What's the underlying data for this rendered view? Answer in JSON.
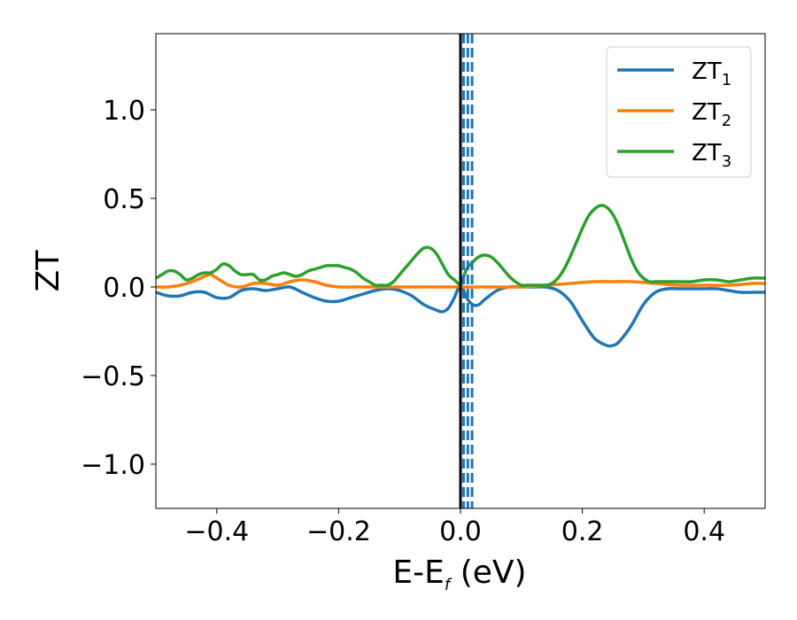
{
  "chart_data": {
    "type": "line",
    "xlabel": "E-E",
    "xlabel_sub": "f",
    "xlabel_unit": " (eV)",
    "ylabel": "ZT",
    "xlim": [
      -0.5,
      0.5
    ],
    "ylim": [
      -1.25,
      1.43
    ],
    "xticks": [
      -0.4,
      -0.2,
      0.0,
      0.2,
      0.4
    ],
    "xtick_labels": [
      "−0.4",
      "−0.2",
      "0.0",
      "0.2",
      "0.4"
    ],
    "yticks": [
      -1.0,
      -0.5,
      0.0,
      0.5,
      1.0
    ],
    "ytick_labels": [
      "−1.0",
      "−0.5",
      "0.0",
      "0.5",
      "1.0"
    ],
    "grid": false,
    "legend_position": "top-right",
    "vlines": [
      {
        "x": 0.0,
        "color": "#000000",
        "style": "solid"
      },
      {
        "x": 0.005,
        "color": "#1f77b4",
        "style": "dashed"
      },
      {
        "x": 0.012,
        "color": "#1f77b4",
        "style": "dashed"
      },
      {
        "x": 0.019,
        "color": "#1f77b4",
        "style": "dashed"
      }
    ],
    "series": [
      {
        "name": "ZT",
        "name_sub": "1",
        "color": "#1f77b4",
        "x": [
          -0.5,
          -0.48,
          -0.46,
          -0.44,
          -0.42,
          -0.4,
          -0.38,
          -0.36,
          -0.34,
          -0.32,
          -0.3,
          -0.28,
          -0.26,
          -0.24,
          -0.22,
          -0.2,
          -0.18,
          -0.16,
          -0.14,
          -0.12,
          -0.1,
          -0.08,
          -0.06,
          -0.04,
          -0.03,
          -0.02,
          -0.01,
          0.0,
          0.01,
          0.02,
          0.03,
          0.04,
          0.06,
          0.08,
          0.1,
          0.12,
          0.14,
          0.16,
          0.18,
          0.2,
          0.22,
          0.24,
          0.25,
          0.26,
          0.28,
          0.3,
          0.32,
          0.34,
          0.36,
          0.38,
          0.4,
          0.42,
          0.44,
          0.46,
          0.48,
          0.5
        ],
        "y": [
          -0.03,
          -0.05,
          -0.05,
          -0.03,
          -0.03,
          -0.06,
          -0.06,
          -0.02,
          -0.01,
          -0.02,
          -0.01,
          0.0,
          -0.03,
          -0.06,
          -0.08,
          -0.08,
          -0.06,
          -0.04,
          -0.02,
          -0.01,
          -0.02,
          -0.05,
          -0.1,
          -0.13,
          -0.14,
          -0.12,
          -0.06,
          0.01,
          -0.06,
          -0.1,
          -0.1,
          -0.07,
          -0.02,
          0.0,
          0.0,
          0.0,
          0.0,
          -0.02,
          -0.08,
          -0.19,
          -0.29,
          -0.33,
          -0.33,
          -0.31,
          -0.22,
          -0.1,
          -0.03,
          -0.01,
          -0.01,
          -0.01,
          -0.01,
          -0.01,
          -0.02,
          -0.03,
          -0.03,
          -0.03
        ]
      },
      {
        "name": "ZT",
        "name_sub": "2",
        "color": "#ff7f0e",
        "x": [
          -0.5,
          -0.48,
          -0.46,
          -0.44,
          -0.42,
          -0.41,
          -0.4,
          -0.38,
          -0.36,
          -0.34,
          -0.32,
          -0.3,
          -0.28,
          -0.26,
          -0.24,
          -0.22,
          -0.2,
          -0.18,
          -0.16,
          -0.14,
          -0.12,
          -0.1,
          -0.06,
          -0.02,
          0.0,
          0.02,
          0.06,
          0.1,
          0.14,
          0.18,
          0.22,
          0.25,
          0.28,
          0.32,
          0.36,
          0.4,
          0.44,
          0.48,
          0.5
        ],
        "y": [
          0.0,
          0.0,
          0.01,
          0.03,
          0.06,
          0.07,
          0.05,
          0.01,
          0.0,
          0.02,
          0.02,
          0.01,
          0.03,
          0.04,
          0.03,
          0.01,
          0.0,
          0.0,
          0.0,
          0.0,
          0.0,
          0.0,
          0.0,
          0.0,
          0.0,
          0.0,
          0.0,
          0.0,
          0.01,
          0.02,
          0.03,
          0.03,
          0.03,
          0.02,
          0.01,
          0.01,
          0.01,
          0.02,
          0.02
        ]
      },
      {
        "name": "ZT",
        "name_sub": "3",
        "color": "#2ca02c",
        "x": [
          -0.5,
          -0.49,
          -0.48,
          -0.47,
          -0.46,
          -0.45,
          -0.44,
          -0.43,
          -0.42,
          -0.41,
          -0.4,
          -0.39,
          -0.38,
          -0.37,
          -0.36,
          -0.35,
          -0.34,
          -0.33,
          -0.32,
          -0.31,
          -0.3,
          -0.29,
          -0.28,
          -0.27,
          -0.26,
          -0.25,
          -0.24,
          -0.23,
          -0.22,
          -0.21,
          -0.2,
          -0.19,
          -0.18,
          -0.17,
          -0.16,
          -0.15,
          -0.14,
          -0.13,
          -0.12,
          -0.11,
          -0.1,
          -0.09,
          -0.08,
          -0.07,
          -0.06,
          -0.05,
          -0.04,
          -0.03,
          -0.02,
          -0.01,
          0.0,
          0.01,
          0.02,
          0.03,
          0.04,
          0.05,
          0.06,
          0.07,
          0.08,
          0.09,
          0.1,
          0.11,
          0.12,
          0.13,
          0.14,
          0.15,
          0.16,
          0.17,
          0.18,
          0.19,
          0.2,
          0.21,
          0.22,
          0.23,
          0.24,
          0.25,
          0.26,
          0.27,
          0.28,
          0.29,
          0.3,
          0.31,
          0.32,
          0.33,
          0.34,
          0.35,
          0.36,
          0.38,
          0.4,
          0.42,
          0.44,
          0.46,
          0.48,
          0.5
        ],
        "y": [
          0.05,
          0.07,
          0.09,
          0.09,
          0.07,
          0.04,
          0.05,
          0.07,
          0.08,
          0.08,
          0.1,
          0.13,
          0.12,
          0.09,
          0.07,
          0.07,
          0.07,
          0.04,
          0.04,
          0.06,
          0.07,
          0.08,
          0.07,
          0.06,
          0.07,
          0.09,
          0.1,
          0.11,
          0.12,
          0.12,
          0.12,
          0.11,
          0.1,
          0.08,
          0.05,
          0.03,
          0.01,
          0.01,
          0.01,
          0.03,
          0.07,
          0.11,
          0.15,
          0.19,
          0.22,
          0.22,
          0.19,
          0.13,
          0.07,
          0.04,
          0.02,
          0.1,
          0.14,
          0.17,
          0.18,
          0.17,
          0.14,
          0.1,
          0.06,
          0.03,
          0.01,
          0.01,
          0.01,
          0.01,
          0.01,
          0.02,
          0.05,
          0.1,
          0.17,
          0.25,
          0.33,
          0.4,
          0.44,
          0.46,
          0.45,
          0.41,
          0.34,
          0.25,
          0.16,
          0.09,
          0.05,
          0.03,
          0.03,
          0.03,
          0.03,
          0.03,
          0.03,
          0.03,
          0.04,
          0.04,
          0.03,
          0.04,
          0.05,
          0.05
        ]
      }
    ]
  }
}
